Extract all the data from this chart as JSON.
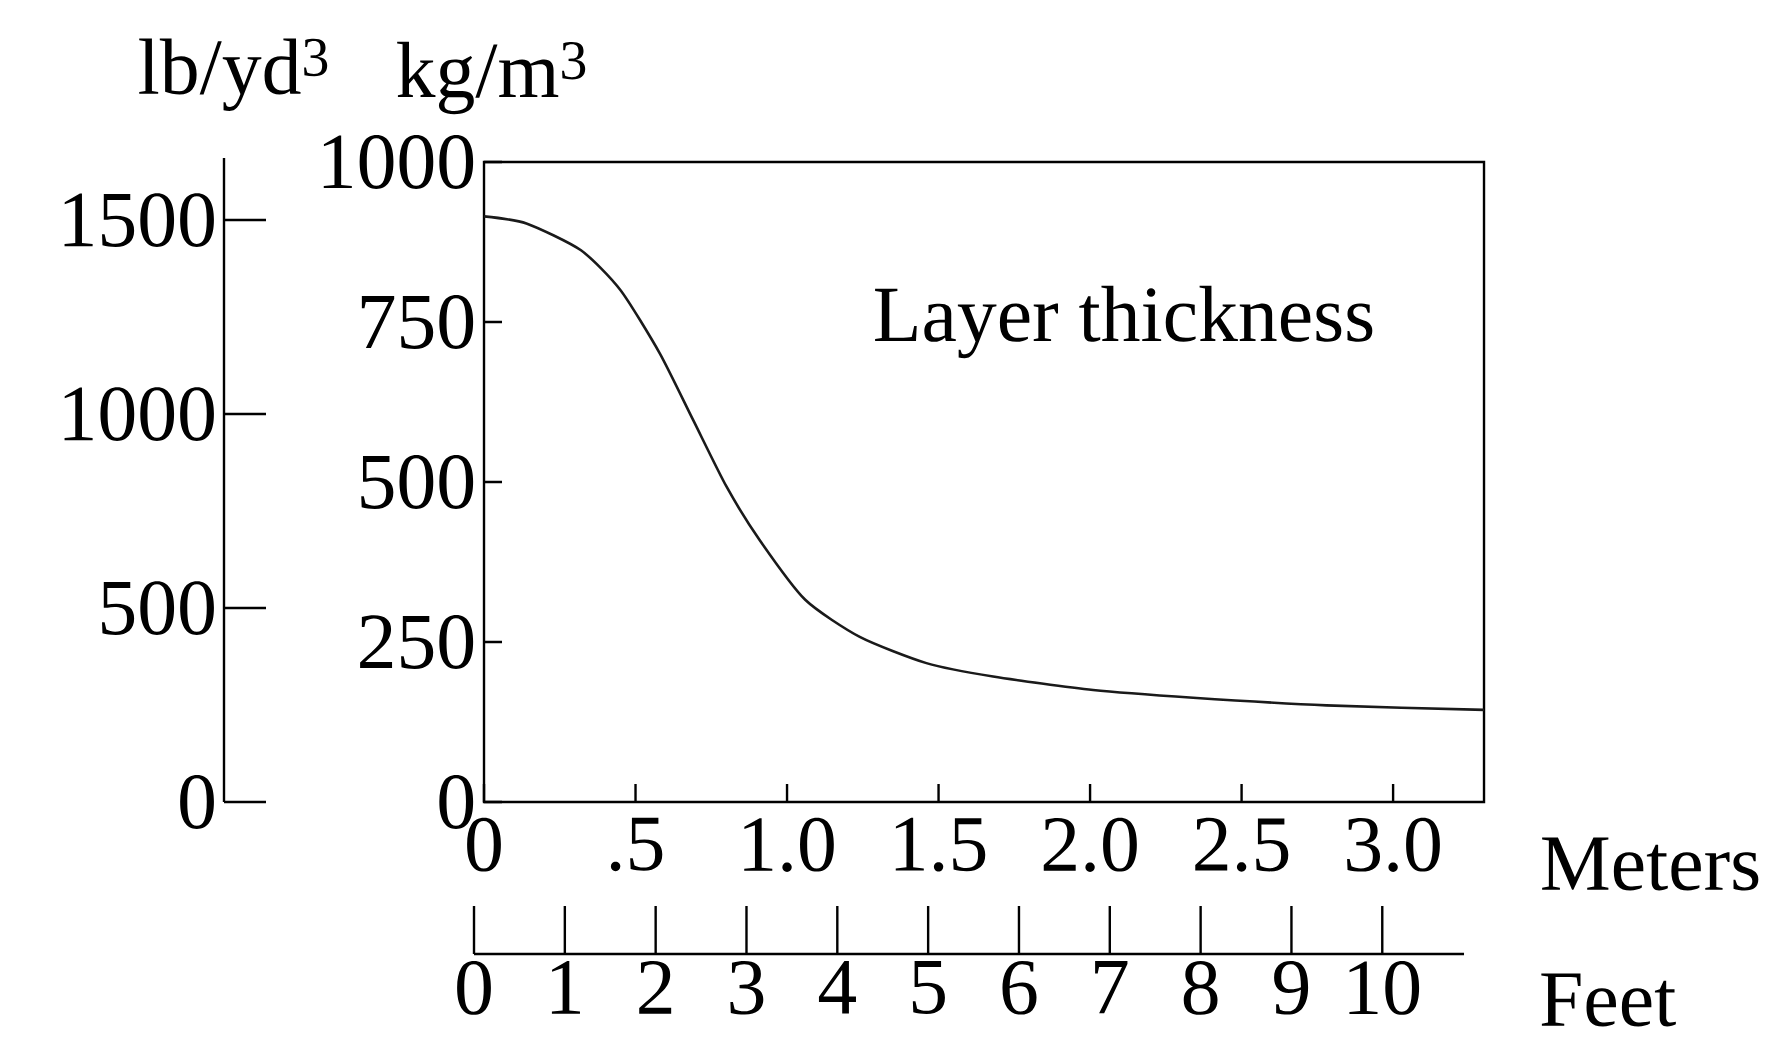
{
  "chart_data": {
    "type": "line",
    "xlabel": "Meters",
    "ylabel": "kg/m$^{3}$",
    "y2label": "lb/yd$^{3}$",
    "x2label": "Feet",
    "annotations": [
      "Layer thickness"
    ],
    "x": [
      0,
      0.14,
      0.32,
      0.45,
      0.58,
      0.69,
      0.8,
      0.91,
      1.06,
      1.24,
      1.46,
      1.68,
      2.01,
      2.34,
      2.78,
      3.3
    ],
    "series": [
      {
        "color": "#1a1a1a",
        "values": [
          915,
          904,
          862,
          800,
          701,
          597,
          493,
          409,
          316,
          258,
          217,
          196,
          175,
          163,
          151,
          144
        ]
      }
    ],
    "xlim": [
      0,
      3.3
    ],
    "ylim": [
      0,
      1000
    ],
    "xticks": [
      0,
      {
        "value": 0.5,
        "label": ".5"
      },
      {
        "value": 1,
        "label": "1.0"
      },
      {
        "value": 1.5,
        "label": "1.5"
      },
      {
        "value": 2,
        "label": "2.0"
      },
      {
        "value": 2.5,
        "label": "2.5"
      },
      {
        "value": 3,
        "label": "3.0"
      }
    ],
    "yticks": [
      0,
      250,
      500,
      750,
      1000
    ],
    "y2lim": [
      0,
      1660
    ],
    "y2ticks": [
      0,
      500,
      1000,
      1500
    ],
    "x2lim": [
      0,
      10.9
    ],
    "x2ticks": [
      0,
      1,
      2,
      3,
      4,
      5,
      6,
      7,
      8,
      9,
      10
    ],
    "line_style": "solid"
  }
}
